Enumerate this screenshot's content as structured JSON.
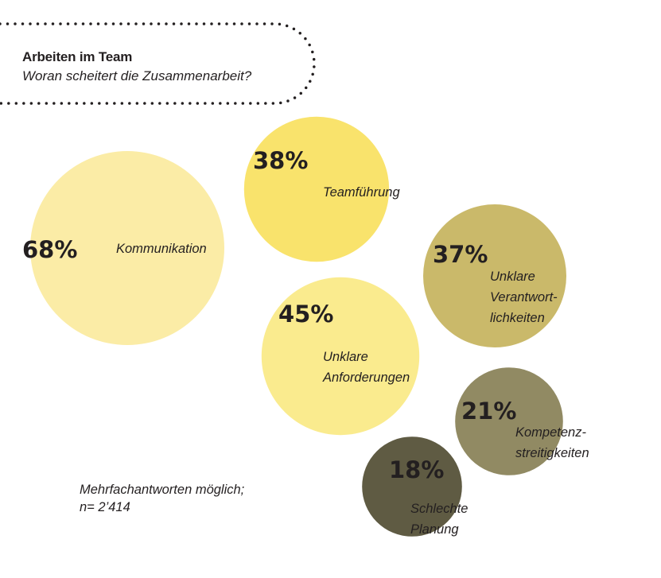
{
  "header": {
    "title": "Arbeiten im Team",
    "subtitle": "Woran scheitert die Zusammenarbeit?"
  },
  "note": {
    "line1": "Mehrfachantworten möglich;",
    "line2": "n= 2’414"
  },
  "chart_data": {
    "type": "bubble",
    "title": "Arbeiten im Team",
    "subtitle": "Woran scheitert die Zusammenarbeit?",
    "unit": "%",
    "items": [
      {
        "value": 68,
        "display": "68%",
        "label": [
          "Kommunikation"
        ],
        "color": "#fbeca6"
      },
      {
        "value": 38,
        "display": "38%",
        "label": [
          "Teamführung"
        ],
        "color": "#f9e36c"
      },
      {
        "value": 45,
        "display": "45%",
        "label": [
          "Unklare",
          "Anforderungen"
        ],
        "color": "#faeb8e"
      },
      {
        "value": 37,
        "display": "37%",
        "label": [
          "Unklare",
          "Verantwort-",
          "lichkeiten"
        ],
        "color": "#cab96a"
      },
      {
        "value": 21,
        "display": "21%",
        "label": [
          "Kompetenz-",
          "streitigkeiten"
        ],
        "color": "#918a63"
      },
      {
        "value": 18,
        "display": "18%",
        "label": [
          "Schlechte",
          "Planung"
        ],
        "color": "#5f5b43"
      }
    ]
  }
}
